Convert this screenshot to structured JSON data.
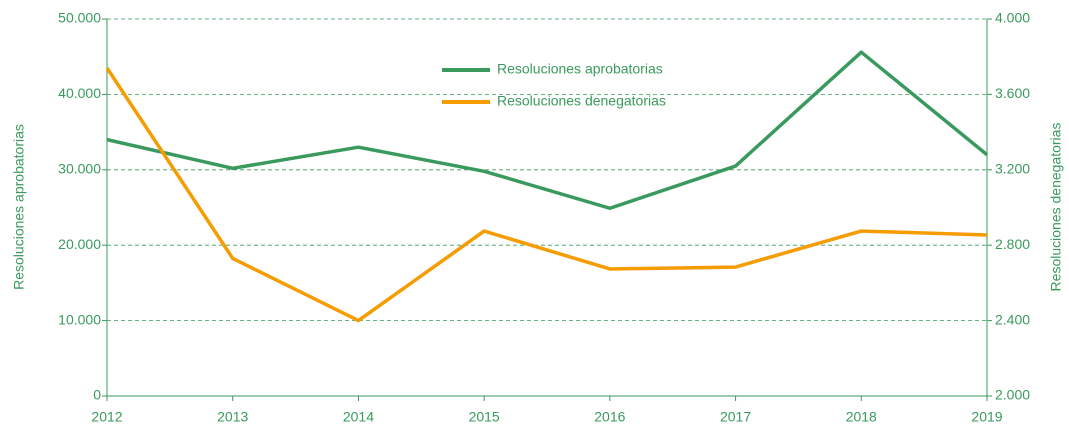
{
  "chart_data": {
    "type": "line",
    "categories": [
      "2012",
      "2013",
      "2014",
      "2015",
      "2016",
      "2017",
      "2018",
      "2019"
    ],
    "ylabel": "Resoluciones aprobatorias",
    "y2label": "Resoluciones denegatorias",
    "ylim": [
      0,
      50000
    ],
    "yticks": [
      0,
      {
        "value": 10000,
        "label": "10.000"
      },
      {
        "value": 20000,
        "label": "20.000"
      },
      {
        "value": 30000,
        "label": "30.000"
      },
      {
        "value": 40000,
        "label": "40.000"
      },
      {
        "value": 50000,
        "label": "50.000"
      }
    ],
    "y2lim": [
      2000,
      4000
    ],
    "y2ticks": [
      {
        "value": 2000,
        "label": "2.000"
      },
      {
        "value": 2400,
        "label": "2.400"
      },
      {
        "value": 2800,
        "label": "2.800"
      },
      {
        "value": 3200,
        "label": "3.200"
      },
      {
        "value": 3600,
        "label": "3.600"
      },
      {
        "value": 4000,
        "label": "4.000"
      }
    ],
    "grid": true,
    "legend": "top",
    "series": [
      {
        "name": "Resoluciones aprobatorias",
        "color": "#3a9a5e",
        "values": [
          34000,
          30200,
          33000,
          29800,
          24900,
          30500,
          45600,
          32000
        ]
      },
      {
        "name": "Resoluciones denegatorias",
        "color": "#f59c00",
        "axis": "y2",
        "values": [
          3740,
          2730,
          2400,
          2875,
          2674,
          2684,
          2875,
          2854
        ]
      }
    ]
  }
}
